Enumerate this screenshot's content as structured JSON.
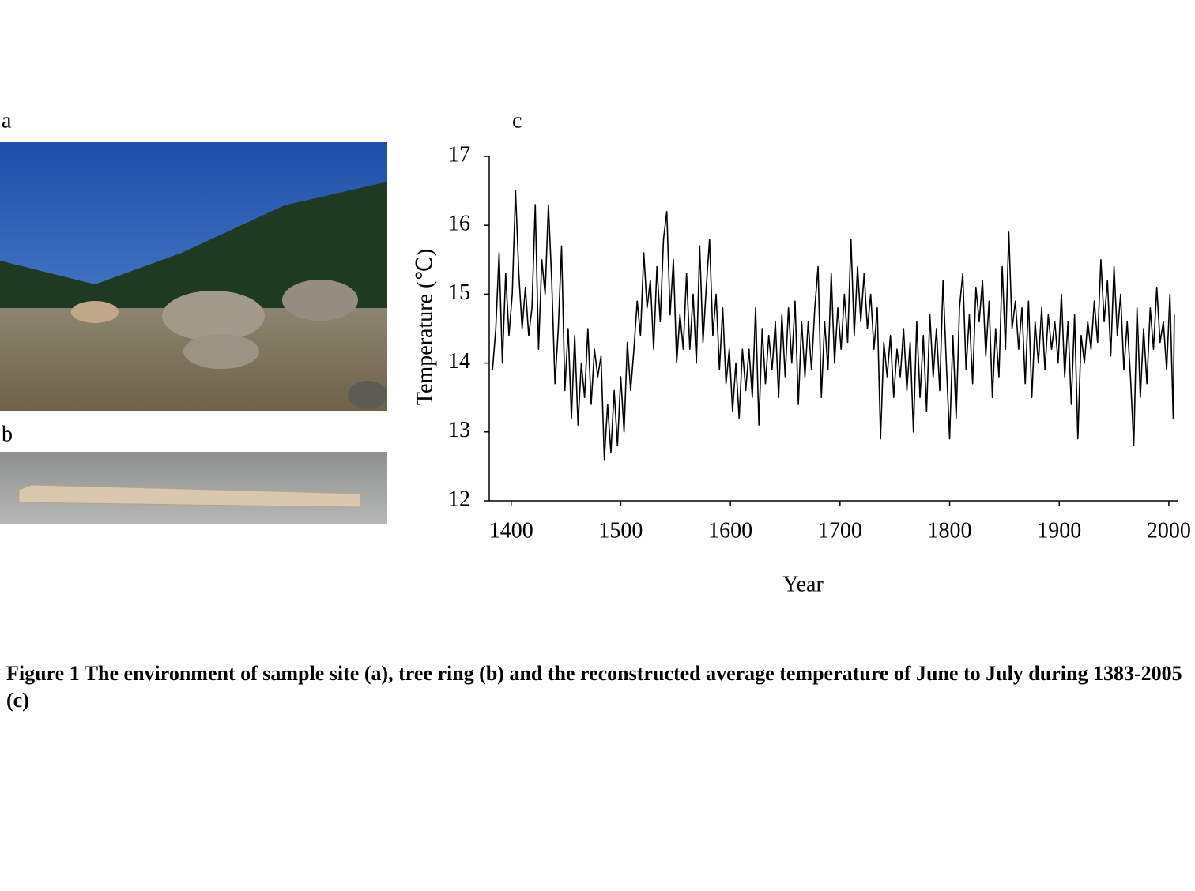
{
  "panel_labels": [
    "a",
    "b",
    "c"
  ],
  "caption": "Figure 1  The environment of sample site (a), tree ring (b) and the reconstructed average temperature of June to July during 1383-2005 (c)",
  "chart_data": {
    "type": "line",
    "xlabel": "Year",
    "ylabel": "Temperature (℃)",
    "color": "#000000",
    "grid": false,
    "xlim": [
      1380,
      2008
    ],
    "xticks": [
      1400,
      1500,
      1600,
      1700,
      1800,
      1900,
      2000
    ],
    "ylim": [
      12,
      17
    ],
    "yticks": [
      12,
      13,
      14,
      15,
      16,
      17
    ],
    "x": [
      1383,
      1386,
      1389,
      1392,
      1395,
      1398,
      1401,
      1404,
      1407,
      1410,
      1413,
      1416,
      1419,
      1422,
      1425,
      1428,
      1431,
      1434,
      1437,
      1440,
      1443,
      1446,
      1449,
      1452,
      1455,
      1458,
      1461,
      1464,
      1467,
      1470,
      1473,
      1476,
      1479,
      1482,
      1485,
      1488,
      1491,
      1494,
      1497,
      1500,
      1503,
      1506,
      1509,
      1512,
      1515,
      1518,
      1521,
      1524,
      1527,
      1530,
      1533,
      1536,
      1539,
      1542,
      1545,
      1548,
      1551,
      1554,
      1557,
      1560,
      1563,
      1566,
      1569,
      1572,
      1575,
      1578,
      1581,
      1584,
      1587,
      1590,
      1593,
      1596,
      1599,
      1602,
      1605,
      1608,
      1611,
      1614,
      1617,
      1620,
      1623,
      1626,
      1629,
      1632,
      1635,
      1638,
      1641,
      1644,
      1647,
      1650,
      1653,
      1656,
      1659,
      1662,
      1665,
      1668,
      1671,
      1674,
      1677,
      1680,
      1683,
      1686,
      1689,
      1692,
      1695,
      1698,
      1701,
      1704,
      1707,
      1710,
      1713,
      1716,
      1719,
      1722,
      1725,
      1728,
      1731,
      1734,
      1737,
      1740,
      1743,
      1746,
      1749,
      1752,
      1755,
      1758,
      1761,
      1764,
      1767,
      1770,
      1773,
      1776,
      1779,
      1782,
      1785,
      1788,
      1791,
      1794,
      1797,
      1800,
      1803,
      1806,
      1809,
      1812,
      1815,
      1818,
      1821,
      1824,
      1827,
      1830,
      1833,
      1836,
      1839,
      1842,
      1845,
      1848,
      1851,
      1854,
      1857,
      1860,
      1863,
      1866,
      1869,
      1872,
      1875,
      1878,
      1881,
      1884,
      1887,
      1890,
      1893,
      1896,
      1899,
      1902,
      1905,
      1908,
      1911,
      1914,
      1917,
      1920,
      1923,
      1926,
      1929,
      1932,
      1935,
      1938,
      1941,
      1944,
      1947,
      1950,
      1953,
      1956,
      1959,
      1962,
      1965,
      1968,
      1971,
      1974,
      1977,
      1980,
      1983,
      1986,
      1989,
      1992,
      1995,
      1998,
      2001,
      2004,
      2005
    ],
    "values": [
      13.9,
      14.5,
      15.6,
      14.0,
      15.3,
      14.4,
      15.0,
      16.5,
      15.3,
      14.5,
      15.1,
      14.4,
      14.8,
      16.3,
      14.2,
      15.5,
      15.0,
      16.3,
      15.2,
      13.7,
      14.5,
      15.7,
      13.6,
      14.5,
      13.2,
      14.4,
      13.1,
      14.0,
      13.5,
      14.5,
      13.4,
      14.2,
      13.8,
      14.1,
      12.6,
      13.4,
      12.7,
      13.6,
      12.8,
      13.8,
      13.0,
      14.3,
      13.6,
      14.2,
      14.9,
      14.4,
      15.6,
      14.8,
      15.2,
      14.2,
      15.4,
      14.6,
      15.8,
      16.2,
      14.7,
      15.5,
      14.0,
      14.7,
      14.2,
      15.3,
      14.2,
      15.0,
      14.0,
      15.7,
      14.3,
      15.1,
      15.8,
      14.4,
      15.0,
      13.9,
      14.8,
      13.7,
      14.2,
      13.3,
      14.0,
      13.2,
      14.2,
      13.6,
      14.2,
      13.5,
      14.8,
      13.1,
      14.5,
      13.7,
      14.4,
      13.9,
      14.6,
      13.5,
      14.7,
      13.8,
      14.8,
      14.0,
      14.9,
      13.4,
      14.6,
      13.8,
      14.6,
      13.9,
      14.8,
      15.4,
      13.5,
      14.6,
      13.9,
      15.3,
      14.0,
      14.8,
      14.2,
      15.0,
      14.3,
      15.8,
      14.4,
      15.4,
      14.6,
      15.3,
      14.5,
      15.0,
      14.2,
      14.8,
      12.9,
      14.3,
      13.8,
      14.4,
      13.5,
      14.2,
      13.8,
      14.5,
      13.6,
      14.3,
      13.0,
      14.6,
      13.5,
      14.4,
      13.3,
      14.7,
      13.8,
      14.5,
      13.6,
      15.2,
      14.0,
      12.9,
      14.4,
      13.2,
      14.8,
      15.3,
      13.9,
      14.7,
      13.7,
      15.1,
      14.6,
      15.2,
      14.1,
      14.9,
      13.5,
      14.5,
      13.8,
      15.4,
      14.2,
      15.9,
      14.5,
      14.9,
      14.2,
      14.8,
      13.7,
      14.9,
      13.5,
      14.6,
      14.0,
      14.8,
      13.9,
      14.7,
      14.2,
      14.6,
      14.0,
      15.0,
      13.8,
      14.6,
      13.4,
      14.7,
      12.9,
      14.4,
      14.0,
      14.6,
      14.2,
      14.9,
      14.3,
      15.5,
      14.6,
      15.2,
      14.1,
      15.4,
      14.4,
      15.0,
      13.9,
      14.6,
      13.8,
      12.8,
      14.8,
      13.5,
      14.5,
      13.7,
      14.8,
      14.2,
      15.1,
      14.3,
      14.6,
      13.9,
      15.0,
      13.2,
      14.7
    ]
  }
}
